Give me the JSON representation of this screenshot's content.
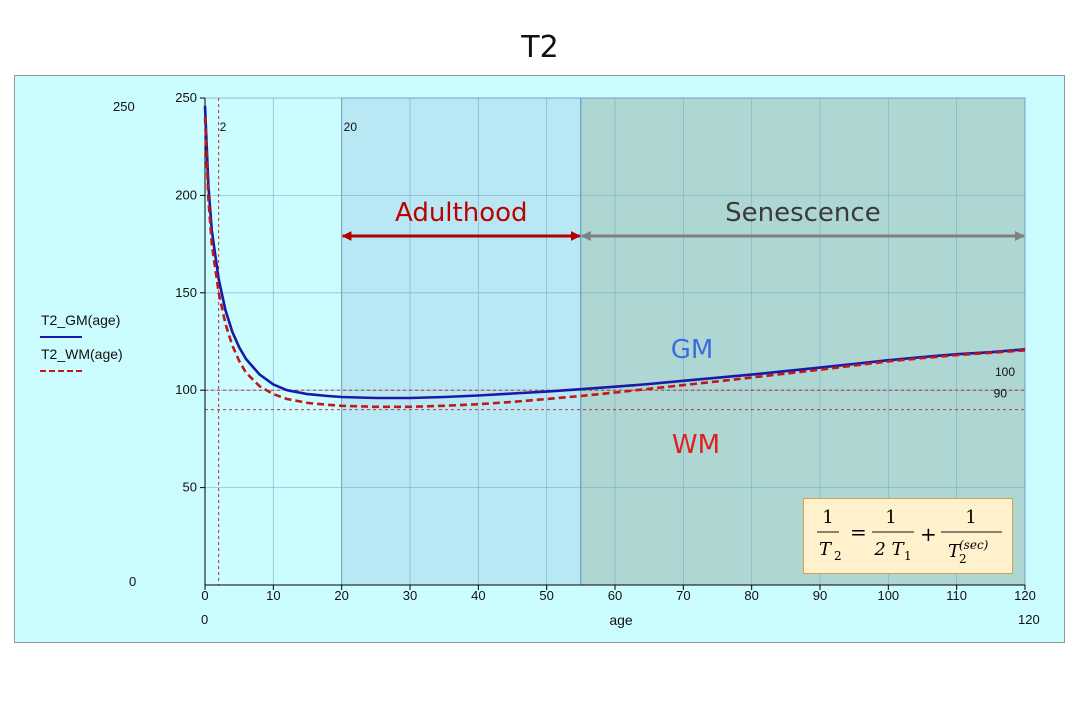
{
  "title": "T2",
  "colors": {
    "panel_bg": "#ccfdfe",
    "adulthood_region": "#b9e8f5",
    "senescence_region": "#aed7d4",
    "gm_line": "#1a1aa8",
    "wm_line": "#c01818",
    "adulthood_text": "#c00000",
    "senescence_text": "#3a3a3a",
    "gm_label": "#3a6ee0",
    "wm_label": "#e02020",
    "formula_bg": "#fff1cc"
  },
  "side_labels": {
    "y_top": "250",
    "y_bottom": "0",
    "x_left": "0",
    "x_right": "120"
  },
  "legend": {
    "gm": "T2_GM(age)",
    "wm": "T2_WM(age)"
  },
  "formula": {
    "lhs_num": "1",
    "lhs_den": "T",
    "lhs_den_sub": "2",
    "equals": "=",
    "t1_num": "1",
    "t1_den": "2 T",
    "t1_den_sub": "1",
    "plus": "+",
    "sec_num": "1",
    "sec_den": "T",
    "sec_den_sub": "2",
    "sec_den_sup": "(sec)"
  },
  "chart_data": {
    "type": "line",
    "title": "",
    "xlabel": "age",
    "ylabel": "",
    "xlim": [
      0,
      120
    ],
    "ylim": [
      0,
      250
    ],
    "x_ticks": [
      0,
      10,
      20,
      30,
      40,
      50,
      60,
      70,
      80,
      90,
      100,
      110,
      120
    ],
    "y_ticks": [
      50,
      100,
      150,
      200,
      250
    ],
    "grid": true,
    "legend_position": "left",
    "series": [
      {
        "name": "T2_GM(age)",
        "style": "solid",
        "x": [
          0,
          0.5,
          1,
          2,
          3,
          4,
          5,
          6,
          8,
          10,
          12,
          15,
          18,
          20,
          25,
          30,
          35,
          40,
          45,
          50,
          55,
          60,
          65,
          70,
          75,
          80,
          85,
          90,
          95,
          100,
          105,
          110,
          115,
          120
        ],
        "y": [
          246,
          205,
          182,
          157,
          141,
          130,
          122,
          116,
          108,
          103,
          100,
          98,
          97,
          96.5,
          96,
          96,
          96.5,
          97.3,
          98.3,
          99.3,
          100.5,
          101.8,
          103.2,
          104.8,
          106.4,
          108,
          109.8,
          111.6,
          113.5,
          115.4,
          117,
          118.5,
          119.5,
          121
        ]
      },
      {
        "name": "T2_WM(age)",
        "style": "dashed",
        "x": [
          0,
          0.5,
          1,
          2,
          3,
          4,
          5,
          6,
          8,
          10,
          12,
          15,
          18,
          20,
          25,
          30,
          35,
          40,
          45,
          50,
          55,
          60,
          65,
          70,
          75,
          80,
          85,
          90,
          95,
          100,
          105,
          110,
          115,
          120
        ],
        "y": [
          240,
          198,
          175,
          150,
          134,
          123,
          115,
          109,
          102,
          98,
          95.5,
          93.5,
          92.5,
          92,
          91.5,
          91.5,
          92,
          92.8,
          94,
          95.5,
          97,
          98.8,
          100.7,
          102.6,
          104.5,
          106.5,
          108.5,
          110.5,
          112.7,
          114.8,
          116.5,
          118,
          119.2,
          120.5
        ]
      }
    ],
    "reference_lines": {
      "horizontal": [
        {
          "y": 100,
          "label": "100"
        },
        {
          "y": 90,
          "label": "90"
        }
      ],
      "vertical": [
        {
          "x": 2,
          "label": "2"
        },
        {
          "x": 20,
          "label": "20"
        }
      ]
    },
    "regions": [
      {
        "name": "Adulthood",
        "x": [
          20,
          55
        ]
      },
      {
        "name": "Senescence",
        "x": [
          55,
          120
        ]
      }
    ],
    "annotations": [
      {
        "text": "Adulthood"
      },
      {
        "text": "Senescence"
      },
      {
        "text": "GM"
      },
      {
        "text": "WM"
      }
    ]
  }
}
